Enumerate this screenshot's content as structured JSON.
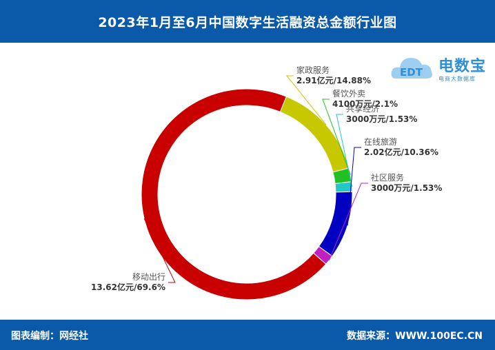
{
  "header": {
    "title": "2023年1月至6月中国数字生活融资总金额行业图"
  },
  "footer": {
    "left": "图表编制：网经社",
    "right": "数据来源：WWW.100EC.CN"
  },
  "logo": {
    "main": "电数宝",
    "sub": "电商大数据库",
    "badge": "EDT"
  },
  "chart_data": {
    "type": "pie",
    "donut": true,
    "unit": "亿元",
    "slices": [
      {
        "name": "家政服务",
        "value": 2.91,
        "value_label": "2.91亿元",
        "percent": 14.88,
        "percent_label": "14.88%",
        "color": "#c8c800"
      },
      {
        "name": "餐饮外卖",
        "value": 0.41,
        "value_label": "4100万元",
        "percent": 2.1,
        "percent_label": "2.1%",
        "color": "#22c022"
      },
      {
        "name": "共享经济",
        "value": 0.3,
        "value_label": "3000万元",
        "percent": 1.53,
        "percent_label": "1.53%",
        "color": "#22c8c8"
      },
      {
        "name": "在线旅游",
        "value": 2.02,
        "value_label": "2.02亿元",
        "percent": 10.36,
        "percent_label": "10.36%",
        "color": "#0000c0"
      },
      {
        "name": "社区服务",
        "value": 0.3,
        "value_label": "3000万元",
        "percent": 1.53,
        "percent_label": "1.53%",
        "color": "#c020c0"
      },
      {
        "name": "移动出行",
        "value": 13.62,
        "value_label": "13.62亿元",
        "percent": 69.6,
        "percent_label": "69.6%",
        "color": "#c80000"
      }
    ]
  }
}
